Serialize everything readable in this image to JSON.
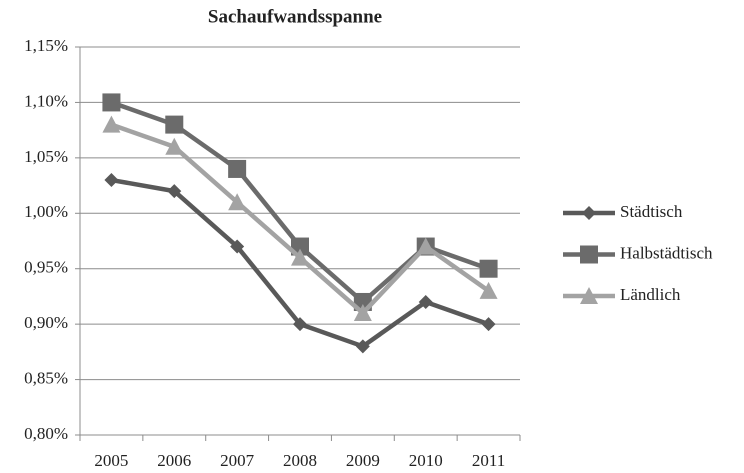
{
  "chart_data": {
    "type": "line",
    "title": "Sachaufwandsspanne",
    "categories": [
      "2005",
      "2006",
      "2007",
      "2008",
      "2009",
      "2010",
      "2011"
    ],
    "series": [
      {
        "name": "Städtisch",
        "color": "#595959",
        "marker": "diamond",
        "values": [
          1.03,
          1.02,
          0.97,
          0.9,
          0.88,
          0.92,
          0.9
        ]
      },
      {
        "name": "Halbstädtisch",
        "color": "#6b6b6b",
        "marker": "square",
        "values": [
          1.1,
          1.08,
          1.04,
          0.97,
          0.92,
          0.97,
          0.95
        ]
      },
      {
        "name": "Ländlich",
        "color": "#a3a3a3",
        "marker": "triangle",
        "values": [
          1.08,
          1.06,
          1.01,
          0.96,
          0.91,
          0.97,
          0.93
        ]
      }
    ],
    "ylim": [
      0.8,
      1.15
    ],
    "yticks": [
      {
        "value": 0.8,
        "label": "0,80%"
      },
      {
        "value": 0.85,
        "label": "0,85%"
      },
      {
        "value": 0.9,
        "label": "0,90%"
      },
      {
        "value": 0.95,
        "label": "0,95%"
      },
      {
        "value": 1.0,
        "label": "1,00%"
      },
      {
        "value": 1.05,
        "label": "1,05%"
      },
      {
        "value": 1.1,
        "label": "1,10%"
      },
      {
        "value": 1.15,
        "label": "1,15%"
      }
    ],
    "grid": true,
    "legend": "right"
  }
}
